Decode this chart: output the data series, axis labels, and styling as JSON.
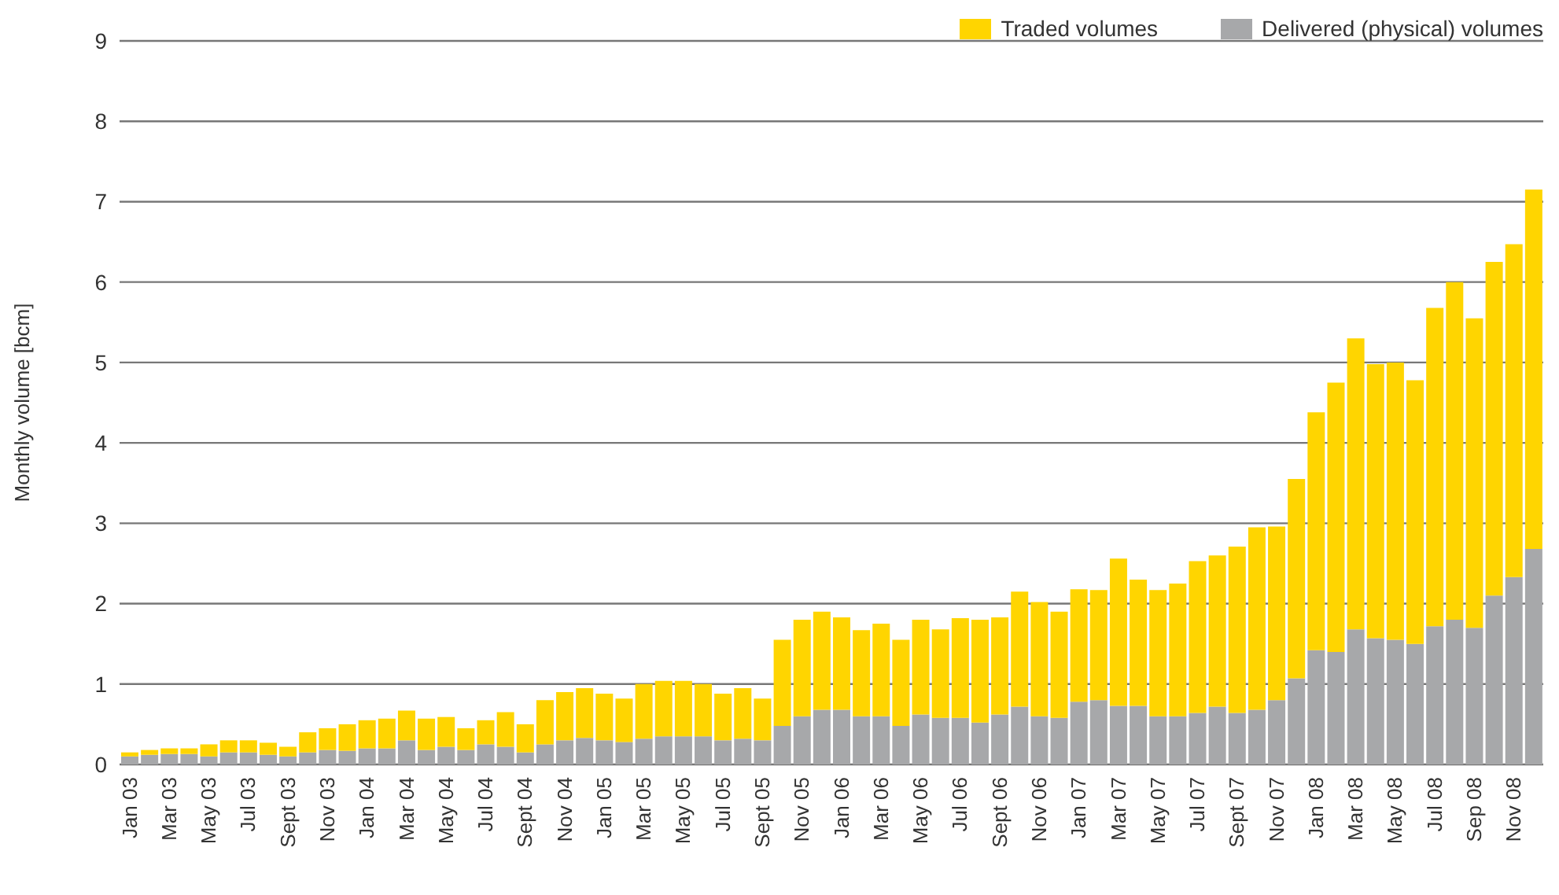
{
  "chart_data": {
    "type": "bar",
    "stacked": true,
    "ylabel": "Monthly volume [bcm]",
    "categories": [
      "Jan 03",
      null,
      "Mar 03",
      null,
      "May 03",
      null,
      "Jul 03",
      null,
      "Sept 03",
      null,
      "Nov 03",
      null,
      "Jan 04",
      null,
      "Mar 04",
      null,
      "May 04",
      null,
      "Jul 04",
      null,
      "Sept 04",
      null,
      "Nov 04",
      null,
      "Jan 05",
      null,
      "Mar 05",
      null,
      "May 05",
      null,
      "Jul 05",
      null,
      "Sept 05",
      null,
      "Nov 05",
      null,
      "Jan 06",
      null,
      "Mar 06",
      null,
      "May 06",
      null,
      "Jul 06",
      null,
      "Sept 06",
      null,
      "Nov 06",
      null,
      "Jan 07",
      null,
      "Mar 07",
      null,
      "May 07",
      null,
      "Jul 07",
      null,
      "Sept 07",
      null,
      "Nov 07",
      null,
      "Jan 08",
      null,
      "Mar 08",
      null,
      "May 08",
      null,
      "Jul 08",
      null,
      "Sep 08",
      null,
      "Nov 08",
      null
    ],
    "series": [
      {
        "name": "Delivered (physical) volumes",
        "color": "#a7a8aa",
        "values": [
          0.1,
          0.12,
          0.13,
          0.13,
          0.1,
          0.15,
          0.15,
          0.12,
          0.1,
          0.15,
          0.18,
          0.17,
          0.2,
          0.2,
          0.3,
          0.18,
          0.22,
          0.18,
          0.25,
          0.22,
          0.15,
          0.25,
          0.3,
          0.33,
          0.3,
          0.28,
          0.32,
          0.35,
          0.35,
          0.35,
          0.3,
          0.32,
          0.3,
          0.48,
          0.6,
          0.68,
          0.68,
          0.6,
          0.6,
          0.48,
          0.62,
          0.58,
          0.58,
          0.52,
          0.62,
          0.72,
          0.6,
          0.58,
          0.78,
          0.8,
          0.73,
          0.73,
          0.6,
          0.6,
          0.64,
          0.72,
          0.64,
          0.68,
          0.8,
          1.07,
          1.42,
          1.4,
          1.68,
          1.57,
          1.55,
          1.5,
          1.72,
          1.8,
          1.7,
          2.1,
          2.33,
          2.68
        ]
      },
      {
        "name": "Traded volumes",
        "color": "#ffd500",
        "values": [
          0.05,
          0.06,
          0.07,
          0.07,
          0.15,
          0.15,
          0.15,
          0.15,
          0.12,
          0.25,
          0.27,
          0.33,
          0.35,
          0.37,
          0.37,
          0.39,
          0.37,
          0.27,
          0.3,
          0.43,
          0.35,
          0.55,
          0.6,
          0.62,
          0.58,
          0.54,
          0.68,
          0.69,
          0.69,
          0.65,
          0.58,
          0.63,
          0.52,
          1.07,
          1.2,
          1.22,
          1.15,
          1.07,
          1.15,
          1.07,
          1.18,
          1.1,
          1.24,
          1.28,
          1.21,
          1.43,
          1.42,
          1.32,
          1.4,
          1.37,
          1.83,
          1.57,
          1.57,
          1.65,
          1.89,
          1.88,
          2.07,
          2.27,
          2.16,
          2.48,
          2.96,
          3.35,
          3.62,
          3.41,
          3.45,
          3.28,
          3.96,
          4.2,
          3.85,
          4.15,
          4.14,
          4.47
        ]
      }
    ],
    "ylim": [
      0,
      9
    ],
    "yticks": [
      0,
      1,
      2,
      3,
      4,
      5,
      6,
      7,
      8,
      9
    ],
    "grid": "y",
    "legend": "top right"
  }
}
